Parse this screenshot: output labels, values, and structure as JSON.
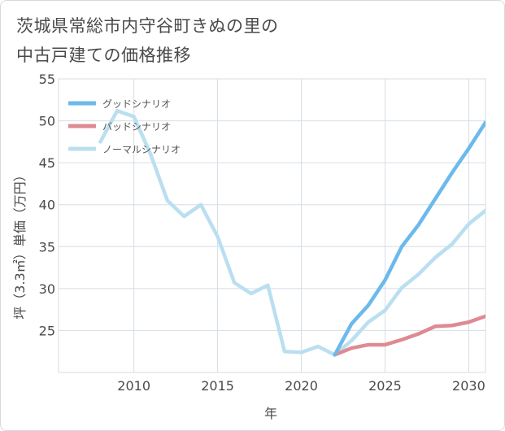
{
  "title_line1": "茨城県常総市内守谷町きぬの里の",
  "title_line2": "中古戸建ての価格推移",
  "chart_data": {
    "type": "line",
    "title": "茨城県常総市内守谷町きぬの里の中古戸建ての価格推移",
    "xlabel": "年",
    "ylabel": "坪（3.3㎡）単価（万円）",
    "xlim": [
      2005.5,
      2031
    ],
    "ylim": [
      20,
      55
    ],
    "xticks": [
      2010,
      2015,
      2020,
      2025,
      2030
    ],
    "yticks": [
      25,
      30,
      35,
      40,
      45,
      50,
      55
    ],
    "grid": true,
    "legend_position": "top-left",
    "series": [
      {
        "name": "グッドシナリオ",
        "color": "#6cb9ec",
        "x": [
          2022,
          2023,
          2024,
          2025,
          2026,
          2027,
          2028,
          2029,
          2030,
          2031
        ],
        "y": [
          22.1,
          25.8,
          28.0,
          31.0,
          35.0,
          37.6,
          40.7,
          43.8,
          46.7,
          49.8
        ]
      },
      {
        "name": "バッドシナリオ",
        "color": "#df8a92",
        "x": [
          2022,
          2023,
          2024,
          2025,
          2026,
          2027,
          2028,
          2029,
          2030,
          2031
        ],
        "y": [
          22.1,
          22.9,
          23.3,
          23.3,
          23.9,
          24.6,
          25.5,
          25.6,
          26.0,
          26.7
        ]
      },
      {
        "name": "ノーマルシナリオ",
        "color": "#badff0",
        "x": [
          2008,
          2009,
          2010,
          2011,
          2012,
          2013,
          2014,
          2015,
          2016,
          2017,
          2018,
          2019,
          2020,
          2021,
          2022,
          2023,
          2024,
          2025,
          2026,
          2027,
          2028,
          2029,
          2030,
          2031
        ],
        "y": [
          47.5,
          51.2,
          50.5,
          46.0,
          40.5,
          38.6,
          40.0,
          36.2,
          30.7,
          29.4,
          30.4,
          22.5,
          22.4,
          23.1,
          22.1,
          23.8,
          26.0,
          27.4,
          30.1,
          31.7,
          33.7,
          35.3,
          37.7,
          39.3
        ]
      }
    ]
  }
}
